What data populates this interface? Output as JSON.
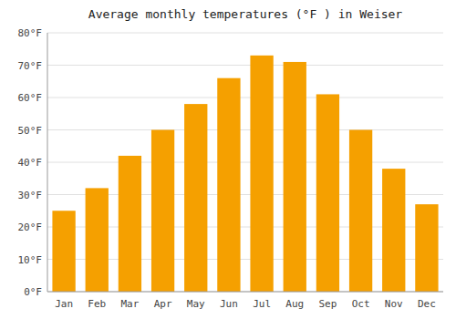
{
  "chart_data": {
    "type": "bar",
    "title": "Average monthly temperatures (°F ) in Weiser",
    "categories": [
      "Jan",
      "Feb",
      "Mar",
      "Apr",
      "May",
      "Jun",
      "Jul",
      "Aug",
      "Sep",
      "Oct",
      "Nov",
      "Dec"
    ],
    "values": [
      25,
      32,
      42,
      50,
      58,
      66,
      73,
      71,
      61,
      50,
      38,
      27
    ],
    "color": "#F5A000",
    "ylim": [
      0,
      80
    ],
    "yticks": [
      {
        "value": 0,
        "label": "0°F"
      },
      {
        "value": 10,
        "label": "10°F"
      },
      {
        "value": 20,
        "label": "20°F"
      },
      {
        "value": 30,
        "label": "30°F"
      },
      {
        "value": 40,
        "label": "40°F"
      },
      {
        "value": 50,
        "label": "50°F"
      },
      {
        "value": 60,
        "label": "60°F"
      },
      {
        "value": 70,
        "label": "70°F"
      },
      {
        "value": 80,
        "label": "80°F"
      }
    ],
    "grid": true
  }
}
